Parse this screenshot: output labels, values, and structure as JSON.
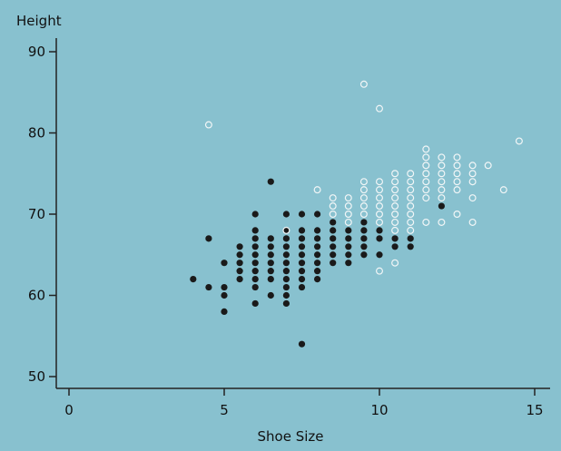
{
  "chart_data": {
    "type": "scatter",
    "title": "",
    "xlabel": "Shoe Size",
    "ylabel": "Height",
    "xlim": [
      -1,
      16
    ],
    "ylim": [
      48,
      92
    ],
    "xticks": [
      0,
      5,
      10,
      15
    ],
    "yticks": [
      50,
      60,
      70,
      80,
      90
    ],
    "grid": false,
    "legend": "none",
    "colors": {
      "filled": "#1a1a1a",
      "open": "#f2f6f7",
      "axis": "#222222",
      "background": "#88c1cf"
    },
    "series": [
      {
        "marker": "filled",
        "points": [
          [
            4,
            62
          ],
          [
            4.5,
            67
          ],
          [
            4.5,
            61
          ],
          [
            5,
            64
          ],
          [
            5,
            61
          ],
          [
            5,
            60
          ],
          [
            5,
            58
          ],
          [
            5.5,
            66
          ],
          [
            5.5,
            65
          ],
          [
            5.5,
            64
          ],
          [
            5.5,
            63
          ],
          [
            5.5,
            62
          ],
          [
            6,
            70
          ],
          [
            6,
            68
          ],
          [
            6,
            67
          ],
          [
            6,
            66
          ],
          [
            6,
            65
          ],
          [
            6,
            64
          ],
          [
            6,
            63
          ],
          [
            6,
            62
          ],
          [
            6,
            61
          ],
          [
            6,
            59
          ],
          [
            6.5,
            74
          ],
          [
            6.5,
            67
          ],
          [
            6.5,
            66
          ],
          [
            6.5,
            65
          ],
          [
            6.5,
            64
          ],
          [
            6.5,
            63
          ],
          [
            6.5,
            62
          ],
          [
            6.5,
            60
          ],
          [
            7,
            67
          ],
          [
            7,
            66
          ],
          [
            7,
            65
          ],
          [
            7,
            64
          ],
          [
            7,
            63
          ],
          [
            7,
            62
          ],
          [
            7,
            61
          ],
          [
            7,
            60
          ],
          [
            7,
            59
          ],
          [
            7,
            68
          ],
          [
            7,
            70
          ],
          [
            7.5,
            70
          ],
          [
            7.5,
            68
          ],
          [
            7.5,
            67
          ],
          [
            7.5,
            66
          ],
          [
            7.5,
            65
          ],
          [
            7.5,
            64
          ],
          [
            7.5,
            63
          ],
          [
            7.5,
            62
          ],
          [
            7.5,
            61
          ],
          [
            7.5,
            54
          ],
          [
            8,
            70
          ],
          [
            8,
            68
          ],
          [
            8,
            67
          ],
          [
            8,
            66
          ],
          [
            8,
            65
          ],
          [
            8,
            64
          ],
          [
            8,
            63
          ],
          [
            8,
            62
          ],
          [
            8.5,
            69
          ],
          [
            8.5,
            68
          ],
          [
            8.5,
            67
          ],
          [
            8.5,
            66
          ],
          [
            8.5,
            65
          ],
          [
            8.5,
            64
          ],
          [
            9,
            68
          ],
          [
            9,
            67
          ],
          [
            9,
            66
          ],
          [
            9,
            65
          ],
          [
            9,
            64
          ],
          [
            9.5,
            69
          ],
          [
            9.5,
            68
          ],
          [
            9.5,
            67
          ],
          [
            9.5,
            66
          ],
          [
            9.5,
            65
          ],
          [
            10,
            68
          ],
          [
            10,
            67
          ],
          [
            10,
            65
          ],
          [
            10.5,
            67
          ],
          [
            10.5,
            66
          ],
          [
            11,
            67
          ],
          [
            11,
            66
          ],
          [
            12,
            71
          ]
        ]
      },
      {
        "marker": "open",
        "points": [
          [
            4.5,
            81
          ],
          [
            7,
            68
          ],
          [
            8,
            73
          ],
          [
            8.5,
            72
          ],
          [
            8.5,
            71
          ],
          [
            8.5,
            70
          ],
          [
            9,
            72
          ],
          [
            9,
            71
          ],
          [
            9,
            70
          ],
          [
            9,
            69
          ],
          [
            9.5,
            86
          ],
          [
            9.5,
            74
          ],
          [
            9.5,
            73
          ],
          [
            9.5,
            72
          ],
          [
            9.5,
            71
          ],
          [
            9.5,
            70
          ],
          [
            10,
            83
          ],
          [
            10,
            74
          ],
          [
            10,
            73
          ],
          [
            10,
            72
          ],
          [
            10,
            71
          ],
          [
            10,
            70
          ],
          [
            10,
            69
          ],
          [
            10,
            63
          ],
          [
            10.5,
            75
          ],
          [
            10.5,
            74
          ],
          [
            10.5,
            73
          ],
          [
            10.5,
            72
          ],
          [
            10.5,
            71
          ],
          [
            10.5,
            70
          ],
          [
            10.5,
            69
          ],
          [
            10.5,
            68
          ],
          [
            10.5,
            64
          ],
          [
            11,
            75
          ],
          [
            11,
            74
          ],
          [
            11,
            73
          ],
          [
            11,
            72
          ],
          [
            11,
            71
          ],
          [
            11,
            70
          ],
          [
            11,
            69
          ],
          [
            11,
            68
          ],
          [
            11.5,
            78
          ],
          [
            11.5,
            77
          ],
          [
            11.5,
            76
          ],
          [
            11.5,
            75
          ],
          [
            11.5,
            74
          ],
          [
            11.5,
            73
          ],
          [
            11.5,
            72
          ],
          [
            11.5,
            69
          ],
          [
            12,
            77
          ],
          [
            12,
            76
          ],
          [
            12,
            75
          ],
          [
            12,
            74
          ],
          [
            12,
            73
          ],
          [
            12,
            72
          ],
          [
            12,
            69
          ],
          [
            12.5,
            77
          ],
          [
            12.5,
            76
          ],
          [
            12.5,
            75
          ],
          [
            12.5,
            74
          ],
          [
            12.5,
            73
          ],
          [
            12.5,
            70
          ],
          [
            13,
            76
          ],
          [
            13,
            75
          ],
          [
            13,
            74
          ],
          [
            13,
            72
          ],
          [
            13,
            69
          ],
          [
            13.5,
            76
          ],
          [
            14,
            73
          ],
          [
            14.5,
            79
          ]
        ]
      }
    ]
  }
}
